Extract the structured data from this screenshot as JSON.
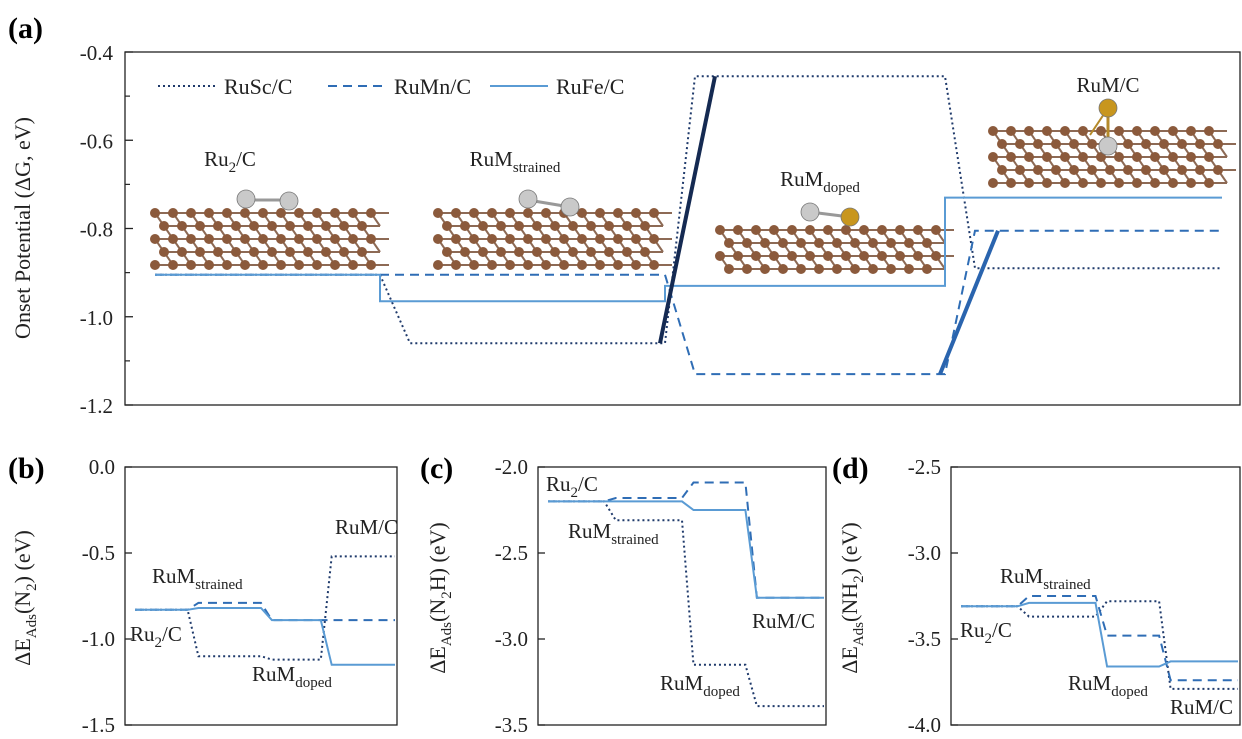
{
  "colors": {
    "RuSc/C": "#1f3a6b",
    "RuMn/C": "#2f6db5",
    "RuFe/C": "#5a9bd4",
    "ru_atom": "#c9c9c9",
    "m_atom": "#c8961e",
    "carbon": "#8b5a3c",
    "bond_dark_sc": "#152a52",
    "bond_dark_mn": "#2a64ae"
  },
  "series_names": [
    "RuSc/C",
    "RuMn/C",
    "RuFe/C"
  ],
  "series_styles": {
    "RuSc/C": "dotted",
    "RuMn/C": "dashed",
    "RuFe/C": "solid"
  },
  "structure_labels": [
    {
      "base": "Ru",
      "sub": "2",
      "tail": "/C"
    },
    {
      "base": "RuM",
      "sub": "strained",
      "tail": ""
    },
    {
      "base": "RuM",
      "sub": "doped",
      "tail": ""
    },
    {
      "base": "RuM/C",
      "sub": "",
      "tail": ""
    }
  ],
  "chart_data": [
    {
      "panel": "(a)",
      "type": "line",
      "ylabel": "Onset Potential (ΔG, eV)",
      "ylim": [
        -1.2,
        -0.4
      ],
      "yticks": [
        "-0.4",
        "-0.6",
        "-0.8",
        "-1.0",
        "-1.2"
      ],
      "legend": "top-left",
      "categories": [
        "Ru2/C",
        "RuMstrained",
        "RuMdoped",
        "RuM/C"
      ],
      "series": [
        {
          "name": "RuSc/C",
          "values": [
            -0.905,
            -1.06,
            -0.455,
            -0.89
          ]
        },
        {
          "name": "RuMn/C",
          "values": [
            -0.905,
            -0.905,
            -1.13,
            -0.805
          ]
        },
        {
          "name": "RuFe/C",
          "values": [
            -0.905,
            -0.965,
            -0.93,
            -0.73
          ]
        }
      ]
    },
    {
      "panel": "(b)",
      "type": "line",
      "ylabel": "ΔEAds(N2) (eV)",
      "ylim": [
        -1.5,
        0.0
      ],
      "yticks": [
        "0.0",
        "-0.5",
        "-1.0",
        "-1.5"
      ],
      "series": [
        {
          "name": "RuSc/C",
          "values": [
            -0.83,
            -1.1,
            -1.12,
            -0.52
          ]
        },
        {
          "name": "RuMn/C",
          "values": [
            -0.83,
            -0.79,
            -0.89,
            -0.89
          ]
        },
        {
          "name": "RuFe/C",
          "values": [
            -0.83,
            -0.82,
            -0.89,
            -1.15
          ]
        }
      ]
    },
    {
      "panel": "(c)",
      "type": "line",
      "ylabel": "ΔEAds(N2H) (eV)",
      "ylim": [
        -3.5,
        -2.0
      ],
      "yticks": [
        "-2.0",
        "-2.5",
        "-3.0",
        "-3.5"
      ],
      "series": [
        {
          "name": "RuSc/C",
          "values": [
            -2.2,
            -2.31,
            -3.15,
            -3.39
          ]
        },
        {
          "name": "RuMn/C",
          "values": [
            -2.2,
            -2.18,
            -2.09,
            -2.76
          ]
        },
        {
          "name": "RuFe/C",
          "values": [
            -2.2,
            -2.2,
            -2.25,
            -2.76
          ]
        }
      ]
    },
    {
      "panel": "(d)",
      "type": "line",
      "ylabel": "ΔEAds(NH2) (eV)",
      "ylim": [
        -4.0,
        -2.5
      ],
      "yticks": [
        "-2.5",
        "-3.0",
        "-3.5",
        "-4.0"
      ],
      "series": [
        {
          "name": "RuSc/C",
          "values": [
            -3.31,
            -3.37,
            -3.28,
            -3.79
          ]
        },
        {
          "name": "RuMn/C",
          "values": [
            -3.31,
            -3.25,
            -3.48,
            -3.74
          ]
        },
        {
          "name": "RuFe/C",
          "values": [
            -3.31,
            -3.29,
            -3.66,
            -3.63
          ]
        }
      ]
    }
  ],
  "panel_labels": [
    "(a)",
    "(b)",
    "(c)",
    "(d)"
  ],
  "ylabel_a": {
    "prefix": "Onset Potential (ΔG, eV)"
  },
  "ylabel_b": {
    "pre": "ΔE",
    "sub": "Ads",
    "mid": "(N",
    "sub2": "2",
    "post": ") (eV)"
  },
  "ylabel_c": {
    "pre": "ΔE",
    "sub": "Ads",
    "mid": "(N",
    "sub2": "2",
    "post": "H) (eV)"
  },
  "ylabel_d": {
    "pre": "ΔE",
    "sub": "Ads",
    "mid": "(NH",
    "sub2": "2",
    "post": ") (eV)"
  }
}
